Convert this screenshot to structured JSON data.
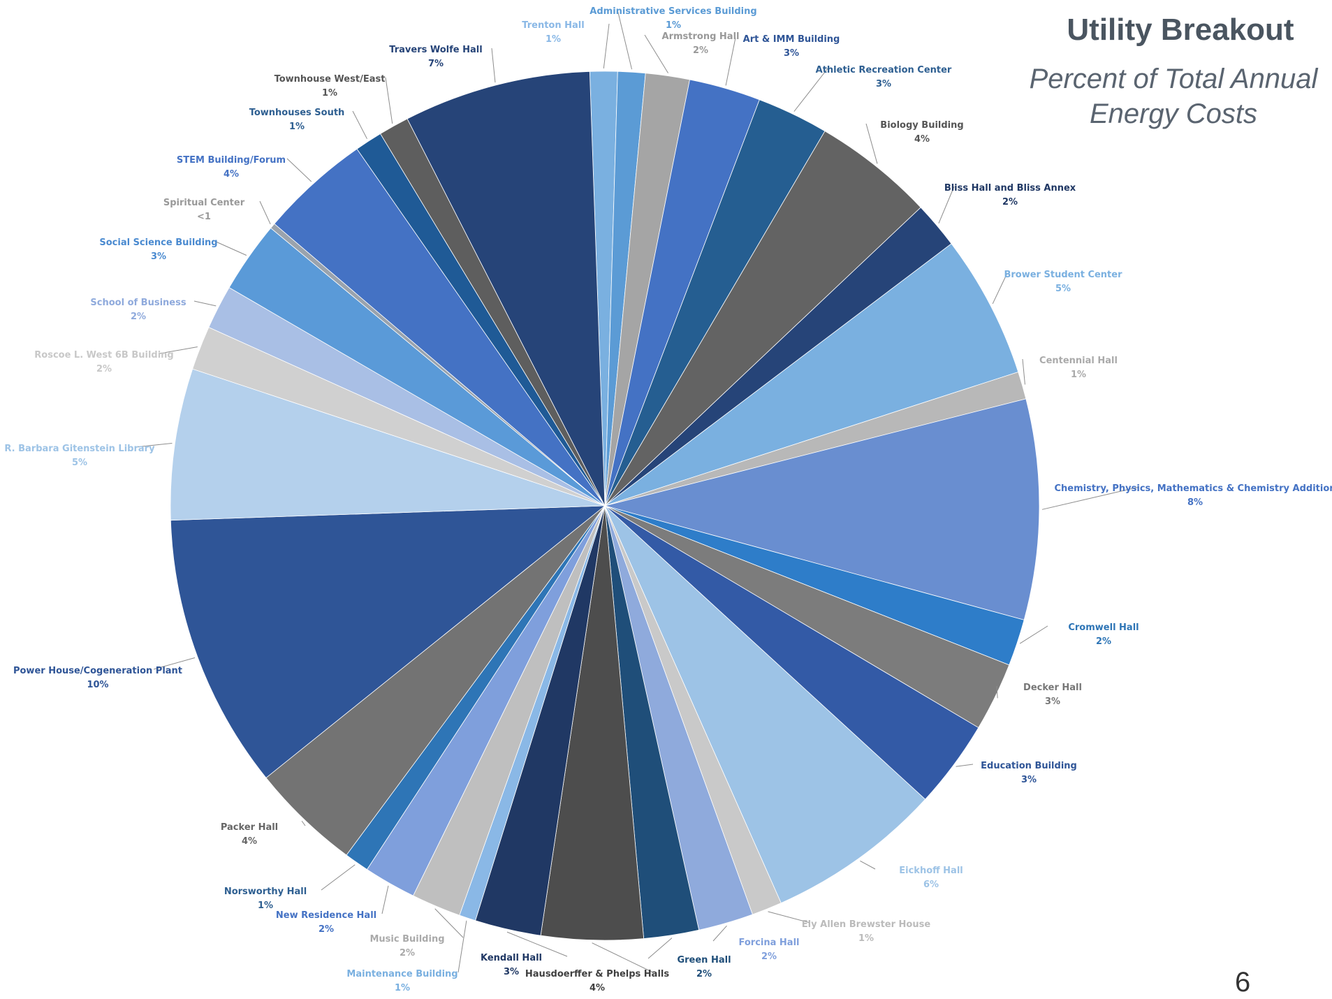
{
  "slide": {
    "title": "Utility Breakout",
    "subtitle_line1": "Percent of Total Annual",
    "subtitle_line2": "Energy Costs",
    "page_number": "6"
  },
  "chart_data": {
    "type": "pie",
    "title": "Utility Breakout",
    "subtitle": "Percent of Total Annual Energy Costs",
    "slices": [
      {
        "name": "Trenton Hall",
        "label": "1%",
        "value": 1.0,
        "color": "#7ab0e0"
      },
      {
        "name": "Administrative Services Building",
        "label": "1%",
        "value": 1.0,
        "color": "#5b9bd5"
      },
      {
        "name": "Armstrong Hall",
        "label": "2%",
        "value": 1.6,
        "color": "#a5a5a5"
      },
      {
        "name": "Art & IMM Building",
        "label": "3%",
        "value": 2.6,
        "color": "#4472c4"
      },
      {
        "name": "Athletic Recreation Center",
        "label": "3%",
        "value": 2.6,
        "color": "#255e91"
      },
      {
        "name": "Biology Building",
        "label": "4%",
        "value": 4.4,
        "color": "#636363"
      },
      {
        "name": "Bliss Hall and Bliss Annex",
        "label": "2%",
        "value": 1.7,
        "color": "#264478"
      },
      {
        "name": "Brower Student Center",
        "label": "5%",
        "value": 5.2,
        "color": "#7ab0e0"
      },
      {
        "name": "Centennial Hall",
        "label": "1%",
        "value": 1.0,
        "color": "#b8b8b8"
      },
      {
        "name": "Chemistry, Physics, Mathematics & Chemistry Addition",
        "label": "8%",
        "value": 8.0,
        "color": "#698ed0"
      },
      {
        "name": "Cromwell Hall",
        "label": "2%",
        "value": 1.7,
        "color": "#2e7dc9"
      },
      {
        "name": "Decker Hall",
        "label": "3%",
        "value": 2.5,
        "color": "#7c7c7c"
      },
      {
        "name": "Education Building",
        "label": "3%",
        "value": 3.2,
        "color": "#335aa6"
      },
      {
        "name": "Eickhoff Hall",
        "label": "6%",
        "value": 6.4,
        "color": "#9dc3e6"
      },
      {
        "name": "Ely Allen Brewster House",
        "label": "1%",
        "value": 1.1,
        "color": "#c9c9c9"
      },
      {
        "name": "Forcina Hall",
        "label": "2%",
        "value": 2.0,
        "color": "#8faadc"
      },
      {
        "name": "Green Hall",
        "label": "2%",
        "value": 2.0,
        "color": "#1f4e79"
      },
      {
        "name": "Hausdoerffer & Phelps Halls",
        "label": "4%",
        "value": 3.7,
        "color": "#4d4d4d"
      },
      {
        "name": "Kendall Hall",
        "label": "3%",
        "value": 2.4,
        "color": "#203864"
      },
      {
        "name": "Maintenance Building",
        "label": "1%",
        "value": 0.6,
        "color": "#8ab8e6"
      },
      {
        "name": "Music Building",
        "label": "2%",
        "value": 1.8,
        "color": "#bfbfbf"
      },
      {
        "name": "New Residence Hall",
        "label": "2%",
        "value": 1.9,
        "color": "#7f9fdc"
      },
      {
        "name": "Norsworthy Hall",
        "label": "1%",
        "value": 0.9,
        "color": "#2e75b6"
      },
      {
        "name": "Packer Hall",
        "label": "4%",
        "value": 4.0,
        "color": "#737373"
      },
      {
        "name": "Power House/Cogeneration Plant",
        "label": "10%",
        "value": 10.0,
        "color": "#2f5597"
      },
      {
        "name": "R. Barbara Gitenstein Library",
        "label": "5%",
        "value": 5.5,
        "color": "#b4d0ec"
      },
      {
        "name": "Roscoe L. West 6B Building",
        "label": "2%",
        "value": 1.6,
        "color": "#d0d0d0"
      },
      {
        "name": "School of Business",
        "label": "2%",
        "value": 1.6,
        "color": "#a9bfe5"
      },
      {
        "name": "Social Science Building",
        "label": "3%",
        "value": 2.6,
        "color": "#5a9ad8"
      },
      {
        "name": "Spiritual Center",
        "label": "<1",
        "value": 0.2,
        "color": "#9aa3ad"
      },
      {
        "name": "STEM Building/Forum",
        "label": "4%",
        "value": 4.0,
        "color": "#4472c4"
      },
      {
        "name": "Townhouses South",
        "label": "1%",
        "value": 1.0,
        "color": "#1f5a96"
      },
      {
        "name": "Townhouse West/East",
        "label": "1%",
        "value": 1.1,
        "color": "#5e5e5e"
      },
      {
        "name": "Travers Wolfe Hall",
        "label": "7%",
        "value": 6.8,
        "color": "#264478"
      }
    ],
    "label_colors": {
      "Trenton Hall": "#8ab8e6",
      "Administrative Services Building": "#5b9bd5",
      "Armstrong Hall": "#999999",
      "Art & IMM Building": "#2f5597",
      "Athletic Recreation Center": "#2e5f91",
      "Biology Building": "#555555",
      "Bliss Hall and Bliss Annex": "#203864",
      "Brower Student Center": "#7ab0e0",
      "Centennial Hall": "#aaaaaa",
      "Chemistry, Physics, Mathematics & Chemistry Addition": "#4472c4",
      "Cromwell Hall": "#2e75b6",
      "Decker Hall": "#777777",
      "Education Building": "#2f5597",
      "Eickhoff Hall": "#9dc3e6",
      "Ely Allen Brewster House": "#bbbbbb",
      "Forcina Hall": "#7f9fdc",
      "Green Hall": "#1f4e79",
      "Hausdoerffer & Phelps Halls": "#404040",
      "Kendall Hall": "#203864",
      "Maintenance Building": "#7ab0e0",
      "Music Building": "#aaaaaa",
      "New Residence Hall": "#4472c4",
      "Norsworthy Hall": "#2e5f91",
      "Packer Hall": "#666666",
      "Power House/Cogeneration Plant": "#2f5597",
      "R. Barbara Gitenstein Library": "#9dc3e6",
      "Roscoe L. West 6B Building": "#c8c8c8",
      "School of Business": "#8faadc",
      "Social Science Building": "#4a8ad0",
      "Spiritual Center": "#999999",
      "STEM Building/Forum": "#4472c4",
      "Townhouses South": "#2e5f91",
      "Townhouse West/East": "#555555",
      "Travers Wolfe Hall": "#264478"
    },
    "start_angle_deg": -92,
    "direction": "clockwise"
  }
}
